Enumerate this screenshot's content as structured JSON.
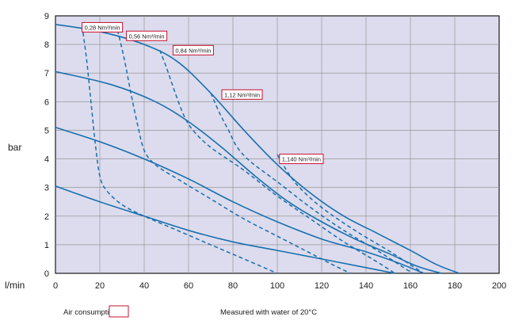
{
  "chart_data": {
    "type": "line",
    "xlabel": "l/min",
    "ylabel": "bar",
    "xlim": [
      0,
      200
    ],
    "ylim": [
      0,
      9
    ],
    "xticks": [
      "0",
      "20",
      "40",
      "60",
      "80",
      "100",
      "120",
      "140",
      "160",
      "180",
      "200"
    ],
    "yticks": [
      "0",
      "1",
      "2",
      "3",
      "4",
      "5",
      "6",
      "7",
      "8",
      "9"
    ],
    "grid": true,
    "colors": {
      "plot_background": "#dcdcee",
      "grid": "#8a8a8a",
      "series": "#1a6fad",
      "annotation_border": "#c8102e"
    },
    "pressure_curves": [
      {
        "style": "solid",
        "points": [
          [
            0,
            8.7
          ],
          [
            20,
            8.45
          ],
          [
            40,
            8.0
          ],
          [
            55,
            7.4
          ],
          [
            70,
            6.3
          ],
          [
            85,
            5.0
          ],
          [
            100,
            3.8
          ],
          [
            115,
            2.8
          ],
          [
            130,
            2.0
          ],
          [
            145,
            1.4
          ],
          [
            160,
            0.8
          ],
          [
            172,
            0.3
          ],
          [
            182,
            0.0
          ]
        ]
      },
      {
        "style": "solid",
        "points": [
          [
            0,
            7.05
          ],
          [
            25,
            6.6
          ],
          [
            45,
            6.0
          ],
          [
            60,
            5.3
          ],
          [
            75,
            4.4
          ],
          [
            90,
            3.4
          ],
          [
            105,
            2.5
          ],
          [
            120,
            1.8
          ],
          [
            135,
            1.2
          ],
          [
            150,
            0.7
          ],
          [
            163,
            0.25
          ],
          [
            174,
            0.0
          ]
        ]
      },
      {
        "style": "solid",
        "points": [
          [
            0,
            5.1
          ],
          [
            20,
            4.6
          ],
          [
            40,
            4.0
          ],
          [
            60,
            3.3
          ],
          [
            80,
            2.5
          ],
          [
            100,
            1.8
          ],
          [
            120,
            1.2
          ],
          [
            140,
            0.75
          ],
          [
            155,
            0.35
          ],
          [
            166,
            0.0
          ]
        ]
      },
      {
        "style": "solid",
        "points": [
          [
            0,
            3.05
          ],
          [
            20,
            2.5
          ],
          [
            40,
            2.0
          ],
          [
            60,
            1.5
          ],
          [
            80,
            1.1
          ],
          [
            100,
            0.8
          ],
          [
            120,
            0.5
          ],
          [
            140,
            0.2
          ],
          [
            153,
            0.0
          ]
        ]
      }
    ],
    "air_consumption_curves": [
      {
        "label": "0,28 Nm³/min",
        "label_at": [
          12,
          8.6
        ],
        "points": [
          [
            12,
            8.65
          ],
          [
            14,
            7.5
          ],
          [
            16,
            6.0
          ],
          [
            18,
            4.5
          ],
          [
            20,
            3.4
          ],
          [
            23,
            2.9
          ],
          [
            30,
            2.4
          ],
          [
            40,
            2.0
          ],
          [
            55,
            1.5
          ],
          [
            70,
            1.0
          ],
          [
            85,
            0.5
          ],
          [
            100,
            0.0
          ]
        ]
      },
      {
        "label": "0,56 Nm³/min",
        "label_at": [
          32,
          8.3
        ],
        "points": [
          [
            28,
            8.5
          ],
          [
            31,
            7.5
          ],
          [
            34,
            6.3
          ],
          [
            37,
            5.2
          ],
          [
            40,
            4.3
          ],
          [
            45,
            3.8
          ],
          [
            55,
            3.3
          ],
          [
            70,
            2.6
          ],
          [
            85,
            1.9
          ],
          [
            100,
            1.3
          ],
          [
            115,
            0.7
          ],
          [
            125,
            0.3
          ],
          [
            133,
            0.0
          ]
        ]
      },
      {
        "label": "0,84 Nm³/min",
        "label_at": [
          53,
          7.8
        ],
        "points": [
          [
            47,
            7.8
          ],
          [
            50,
            7.2
          ],
          [
            54,
            6.3
          ],
          [
            58,
            5.5
          ],
          [
            62,
            5.0
          ],
          [
            70,
            4.4
          ],
          [
            85,
            3.6
          ],
          [
            100,
            2.7
          ],
          [
            115,
            1.9
          ],
          [
            130,
            1.1
          ],
          [
            145,
            0.4
          ],
          [
            153,
            0.0
          ]
        ]
      },
      {
        "label": "1,12 Nm³/min",
        "label_at": [
          75,
          6.25
        ],
        "points": [
          [
            70,
            6.3
          ],
          [
            74,
            5.6
          ],
          [
            78,
            5.0
          ],
          [
            82,
            4.4
          ],
          [
            88,
            3.9
          ],
          [
            100,
            3.2
          ],
          [
            115,
            2.3
          ],
          [
            130,
            1.5
          ],
          [
            145,
            0.8
          ],
          [
            155,
            0.3
          ],
          [
            161,
            0.0
          ]
        ]
      },
      {
        "label": "1,140 Nm³/min",
        "label_at": [
          101,
          4.0
        ],
        "points": [
          [
            100,
            4.15
          ],
          [
            105,
            3.5
          ],
          [
            110,
            3.0
          ],
          [
            120,
            2.3
          ],
          [
            135,
            1.5
          ],
          [
            150,
            0.8
          ],
          [
            160,
            0.3
          ],
          [
            166,
            0.0
          ]
        ]
      }
    ]
  },
  "legend": {
    "air_consumption_label": "Air consumption",
    "measured_note": "Measured with water of 20°C"
  }
}
